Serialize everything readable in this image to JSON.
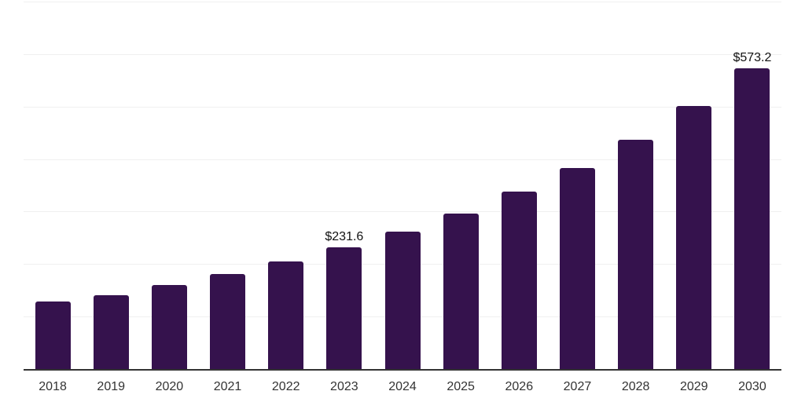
{
  "chart_data": {
    "type": "bar",
    "title": "",
    "xlabel": "",
    "ylabel": "",
    "categories": [
      "2018",
      "2019",
      "2020",
      "2021",
      "2022",
      "2023",
      "2024",
      "2025",
      "2026",
      "2027",
      "2028",
      "2029",
      "2030"
    ],
    "values": [
      128.5,
      140.6,
      160.0,
      180.5,
      205.0,
      231.6,
      261.6,
      296.6,
      337.6,
      382.4,
      436.3,
      501.1,
      573.2
    ],
    "point_labels": [
      "",
      "",
      "",
      "",
      "",
      "$231.6",
      "",
      "",
      "",
      "",
      "",
      "",
      "$573.2"
    ],
    "ylim": [
      0,
      700
    ],
    "grid_step": 100,
    "grid": "horizontal-only",
    "legend": "none",
    "colors": {
      "bar": "#35124D",
      "grid": "#F0F0F0",
      "axis": "#333333",
      "tick_label": "#333333",
      "value_label": "#111111",
      "background": "#FFFFFF"
    }
  }
}
